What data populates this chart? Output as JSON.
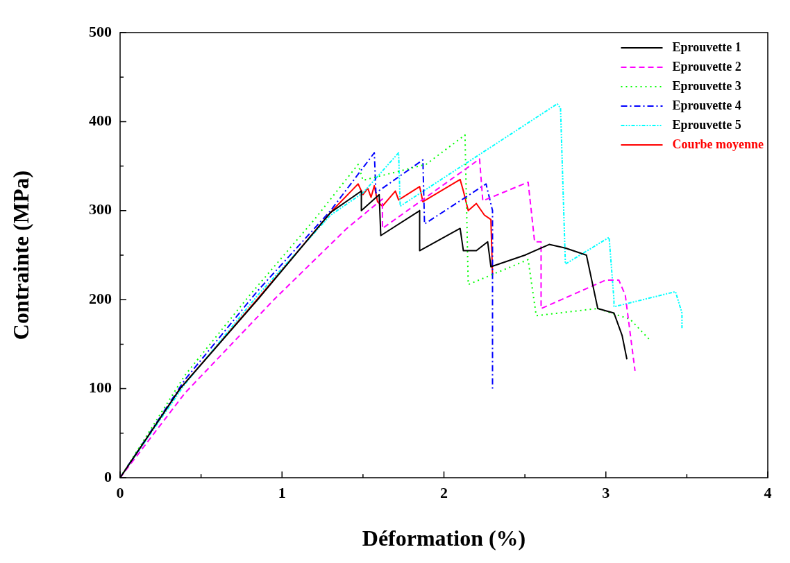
{
  "chart_data": {
    "type": "line",
    "xlabel": "Déformation (%)",
    "ylabel": "Contrainte (MPa)",
    "xlim": [
      0,
      4
    ],
    "ylim": [
      0,
      500
    ],
    "xticks": [
      0,
      {
        "value": 0.5,
        "label": null
      },
      1,
      {
        "value": 1.5,
        "label": null
      },
      2,
      {
        "value": 2.5,
        "label": null
      },
      3,
      {
        "value": 3.5,
        "label": null
      },
      4
    ],
    "yticks": [
      0,
      {
        "value": 50,
        "label": null
      },
      100,
      {
        "value": 150,
        "label": null
      },
      200,
      {
        "value": 250,
        "label": null
      },
      300,
      {
        "value": 350,
        "label": null
      },
      400,
      {
        "value": 450,
        "label": null
      },
      500
    ],
    "grid": false,
    "legend": "top right",
    "marker": "none",
    "series": [
      {
        "name": "Eprouvette 1",
        "color": "#000000",
        "line_style": "solid",
        "x": [
          0,
          0.37,
          0.85,
          1.3,
          1.49,
          1.49,
          1.6,
          1.61,
          1.85,
          1.85,
          2.1,
          2.12,
          2.2,
          2.27,
          2.29,
          2.5,
          2.65,
          2.75,
          2.88,
          2.95,
          3.05,
          3.1,
          3.13
        ],
        "values": [
          0,
          100,
          200,
          298,
          322,
          300,
          318,
          272,
          300,
          255,
          280,
          255,
          255,
          265,
          237,
          250,
          262,
          258,
          250,
          190,
          185,
          160,
          133
        ]
      },
      {
        "name": "Eprouvette 2",
        "color": "#ff00ff",
        "line_style": "dashed",
        "x": [
          0,
          0.4,
          0.95,
          1.4,
          1.62,
          1.62,
          2.22,
          2.24,
          2.52,
          2.56,
          2.6,
          2.6,
          3.0,
          3.08,
          3.12,
          3.18
        ],
        "values": [
          0,
          95,
          200,
          280,
          313,
          280,
          358,
          311,
          332,
          265,
          265,
          190,
          222,
          222,
          205,
          120
        ]
      },
      {
        "name": "Eprouvette 3",
        "color": "#00ff00",
        "line_style": "dotted",
        "x": [
          0,
          0.4,
          0.8,
          1.2,
          1.47,
          1.5,
          1.89,
          2.13,
          2.15,
          2.52,
          2.57,
          2.85,
          2.95,
          3.15,
          3.27
        ],
        "values": [
          0,
          115,
          205,
          290,
          352,
          334,
          352,
          385,
          217,
          245,
          182,
          188,
          190,
          178,
          155
        ]
      },
      {
        "name": "Eprouvette 4",
        "color": "#0000ff",
        "line_style": "dashdot",
        "x": [
          0,
          0.4,
          0.85,
          1.3,
          1.57,
          1.58,
          1.87,
          1.88,
          2.26,
          2.28,
          2.3,
          2.3
        ],
        "values": [
          0,
          110,
          210,
          300,
          365,
          320,
          357,
          285,
          330,
          315,
          300,
          100
        ]
      },
      {
        "name": "Eprouvette 5",
        "color": "#00ffff",
        "line_style": "dashdotdot",
        "x": [
          0,
          0.4,
          0.85,
          1.3,
          1.5,
          1.72,
          1.73,
          2.7,
          2.72,
          2.75,
          3.02,
          3.05,
          3.05,
          3.43,
          3.47,
          3.47
        ],
        "values": [
          0,
          105,
          205,
          295,
          320,
          365,
          305,
          420,
          415,
          240,
          270,
          200,
          192,
          209,
          185,
          168
        ]
      },
      {
        "name": "Courbe moyenne",
        "color": "#ff0000",
        "line_style": "solid",
        "x": [
          0,
          0.37,
          0.845,
          1.31,
          1.47,
          1.5,
          1.53,
          1.55,
          1.57,
          1.59,
          1.62,
          1.7,
          1.72,
          1.85,
          1.87,
          2.1,
          2.12,
          2.15,
          2.2,
          2.25,
          2.29,
          2.3
        ],
        "values": [
          0,
          100,
          200,
          300,
          330,
          318,
          325,
          315,
          328,
          310,
          305,
          322,
          312,
          327,
          310,
          335,
          322,
          300,
          308,
          295,
          290,
          228
        ]
      }
    ]
  }
}
